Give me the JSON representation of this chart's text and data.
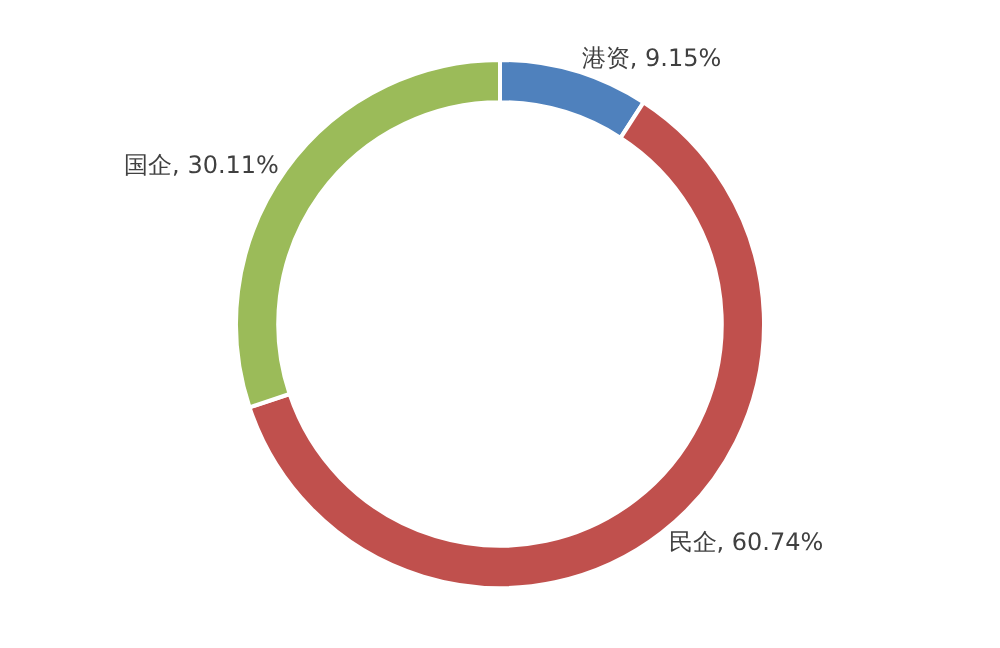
{
  "chart_data": {
    "type": "donut",
    "categories": [
      "港资",
      "民企",
      "国企"
    ],
    "values": [
      9.15,
      60.74,
      30.11
    ],
    "value_labels": [
      "9.15%",
      "60.74%",
      "30.11%"
    ],
    "colors": [
      "#4f81bd",
      "#c0504d",
      "#9bbb59"
    ],
    "legend": false
  }
}
